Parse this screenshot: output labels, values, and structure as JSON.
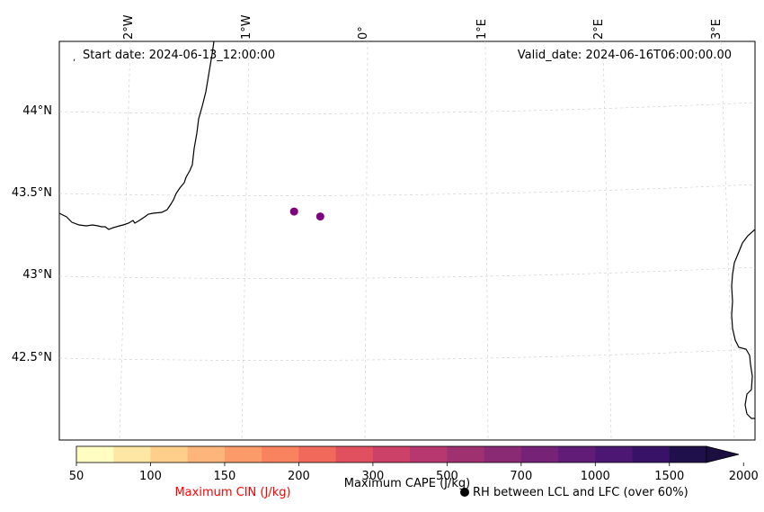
{
  "map": {
    "start_label": "Start date: 2024-06-13_12:00:00",
    "valid_label": "Valid_date: 2024-06-16T06:00:00.00",
    "lon_labels": [
      "2°W",
      "1°W",
      "0°",
      "1°E",
      "2°E",
      "3°E"
    ],
    "lat_labels": [
      "44°N",
      "43.5°N",
      "43°N",
      "42.5°N"
    ],
    "points": [
      {
        "lon": -0.62,
        "lat": 43.39,
        "color": "#800080"
      },
      {
        "lon": -0.4,
        "lat": 43.36,
        "color": "#800080"
      }
    ]
  },
  "colorbar": {
    "ticks": [
      "50",
      "100",
      "150",
      "200",
      "300",
      "500",
      "700",
      "1000",
      "1500",
      "2000"
    ],
    "colors": [
      "#fffdc1",
      "#fee6a4",
      "#fecf8a",
      "#fdb57b",
      "#fc9b6a",
      "#f9825f",
      "#f1695b",
      "#e0505f",
      "#cc4168",
      "#b6386f",
      "#a03171",
      "#8b2a74",
      "#762277",
      "#611c78",
      "#4c1673",
      "#371266",
      "#1f0f4b"
    ],
    "extend_color": "#1c0f3f",
    "cin_label": "Maximum CIN (J/kg)",
    "cin_color": "#ff0000",
    "cape_label": "Maximum CAPE (J/kg)",
    "rh_label": "RH between LCL and LFC (over 60%)"
  }
}
